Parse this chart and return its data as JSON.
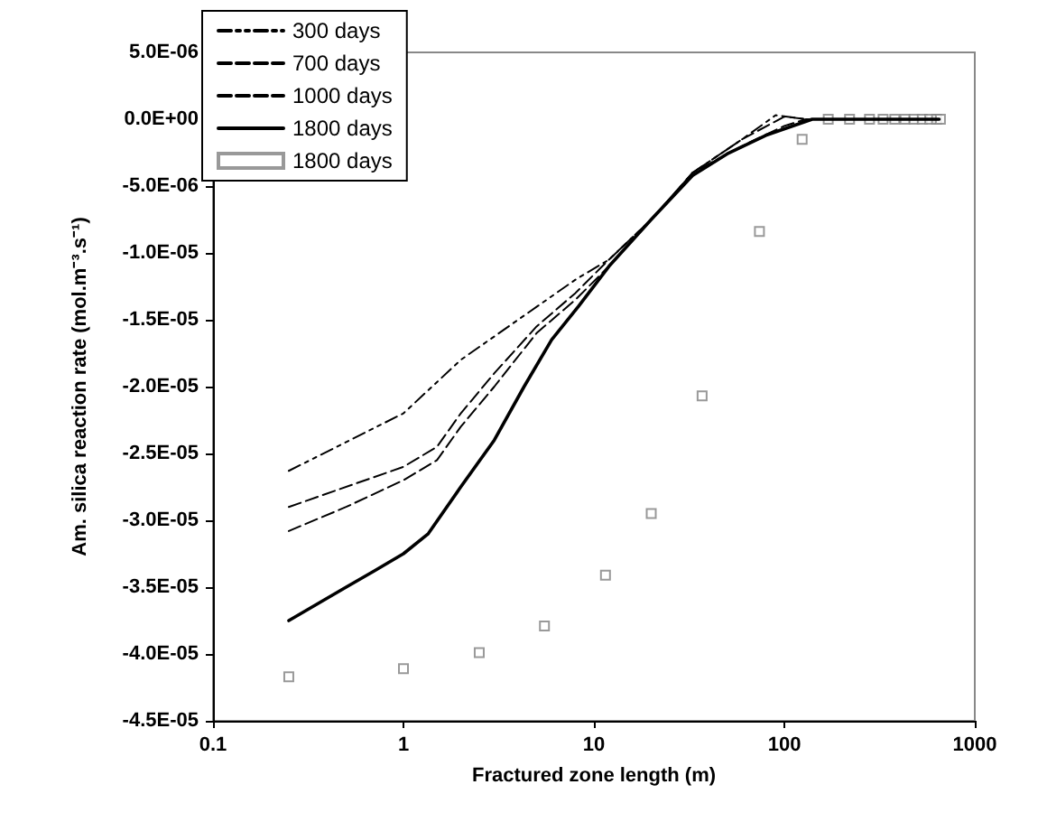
{
  "chart_data": {
    "type": "line",
    "xlabel": "Fractured zone length (m)",
    "ylabel": "Am. silica reaction rate (mol.m⁻³.s⁻¹)",
    "log": "x",
    "xlim": [
      0.1,
      1000
    ],
    "xticks": [
      0.1,
      1,
      10,
      100,
      1000
    ],
    "ylim": [
      -4.5e-05,
      5e-06
    ],
    "yticks": [
      {
        "value": -4.5e-05,
        "label": "-4.5E-05"
      },
      {
        "value": -4e-05,
        "label": "-4.0E-05"
      },
      {
        "value": -3.5e-05,
        "label": "-3.5E-05"
      },
      {
        "value": -3e-05,
        "label": "-3.0E-05"
      },
      {
        "value": -2.5e-05,
        "label": "-2.5E-05"
      },
      {
        "value": -2e-05,
        "label": "-2.0E-05"
      },
      {
        "value": -1.5e-05,
        "label": "-1.5E-05"
      },
      {
        "value": -1e-05,
        "label": "-1.0E-05"
      },
      {
        "value": -5e-06,
        "label": "-5.0E-06"
      },
      {
        "value": 0,
        "label": "0.0E+00"
      },
      {
        "value": 5e-06,
        "label": "5.0E-06"
      }
    ],
    "grid": false,
    "legend": "top left",
    "series": [
      {
        "name": "300 days",
        "color": "#000000",
        "line_style": "dotted",
        "marker": "none",
        "x": [
          0.25,
          1,
          2,
          4,
          8,
          12,
          20,
          33,
          60,
          90,
          130,
          650
        ],
        "values": [
          -2.63e-05,
          -2.2e-05,
          -1.8e-05,
          -1.5e-05,
          -1.2e-05,
          -1.05e-05,
          -7.5e-06,
          -4e-06,
          -1.5e-06,
          3e-07,
          0,
          0
        ]
      },
      {
        "name": "700 days",
        "color": "#000000",
        "line_style": "dashed",
        "marker": "none",
        "x": [
          0.25,
          1,
          1.5,
          2,
          3,
          5,
          8,
          12,
          20,
          33,
          60,
          100,
          130,
          650
        ],
        "values": [
          -2.9e-05,
          -2.6e-05,
          -2.45e-05,
          -2.2e-05,
          -1.9e-05,
          -1.55e-05,
          -1.3e-05,
          -1.05e-05,
          -7.5e-06,
          -4e-06,
          -1.5e-06,
          2e-07,
          0,
          0
        ]
      },
      {
        "name": "1000 days",
        "color": "#000000",
        "line_style": "dashed",
        "marker": "none",
        "x": [
          0.25,
          0.5,
          1,
          1.5,
          2,
          3,
          5,
          8,
          12,
          20,
          33,
          60,
          100,
          130,
          650
        ],
        "values": [
          -3.08e-05,
          -2.9e-05,
          -2.7e-05,
          -2.55e-05,
          -2.3e-05,
          -2e-05,
          -1.6e-05,
          -1.35e-05,
          -1.1e-05,
          -7.5e-06,
          -4e-06,
          -2e-06,
          -5e-07,
          0,
          0
        ]
      },
      {
        "name": "1800 days",
        "color": "#000000",
        "line_style": "solid",
        "marker": "none",
        "x": [
          0.25,
          0.5,
          0.7,
          1,
          1.35,
          2,
          3,
          4.3,
          6,
          8.3,
          12,
          20,
          33,
          50,
          80,
          140,
          650
        ],
        "values": [
          -3.75e-05,
          -3.5e-05,
          -3.38e-05,
          -3.25e-05,
          -3.1e-05,
          -2.75e-05,
          -2.4e-05,
          -2e-05,
          -1.65e-05,
          -1.4e-05,
          -1.1e-05,
          -7.5e-06,
          -4.2e-06,
          -2.6e-06,
          -1.2e-06,
          0,
          0
        ]
      },
      {
        "name": "1800 days",
        "type": "scatter",
        "color": "#808080",
        "marker": "square",
        "x": [
          0.25,
          1,
          2.5,
          5.5,
          11.5,
          20,
          37,
          74,
          124,
          170,
          220,
          280,
          330,
          380,
          430,
          480,
          530,
          580,
          630,
          660
        ],
        "values": [
          -4.17e-05,
          -4.11e-05,
          -3.99e-05,
          -3.79e-05,
          -3.41e-05,
          -2.95e-05,
          -2.07e-05,
          -8.4e-06,
          -1.5e-06,
          0,
          0,
          0,
          0,
          0,
          0,
          0,
          0,
          0,
          0,
          0
        ]
      }
    ]
  }
}
